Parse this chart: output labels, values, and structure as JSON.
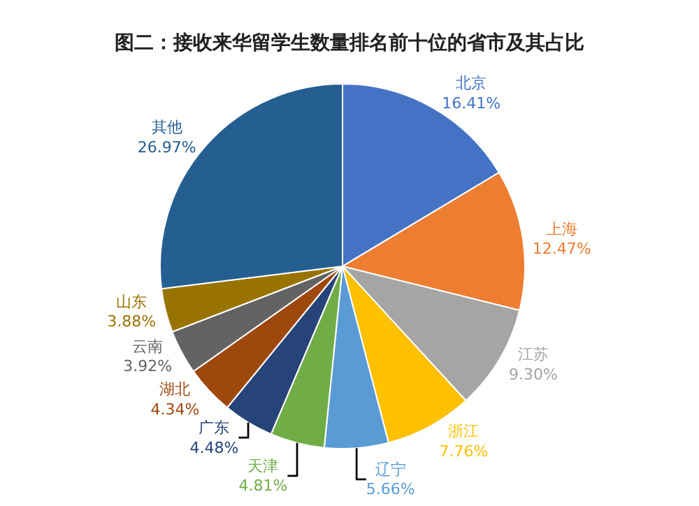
{
  "chart_data": {
    "type": "pie",
    "title": "图二：接收来华留学生数量排名前十位的省市及其占比",
    "categories": [
      "北京",
      "上海",
      "江苏",
      "浙江",
      "辽宁",
      "天津",
      "广东",
      "湖北",
      "云南",
      "山东",
      "其他"
    ],
    "values": [
      16.41,
      12.47,
      9.3,
      7.76,
      5.66,
      4.81,
      4.48,
      4.34,
      3.92,
      3.88,
      26.97
    ],
    "value_labels": [
      "16.41%",
      "12.47%",
      "9.30%",
      "7.76%",
      "5.66%",
      "4.81%",
      "4.48%",
      "4.34%",
      "3.92%",
      "3.88%",
      "26.97%"
    ],
    "colors": [
      "#4472c4",
      "#ed7d31",
      "#a5a5a5",
      "#ffc000",
      "#5b9bd5",
      "#70ad47",
      "#264478",
      "#9e480e",
      "#636363",
      "#997300",
      "#255e91"
    ],
    "legend": false
  }
}
